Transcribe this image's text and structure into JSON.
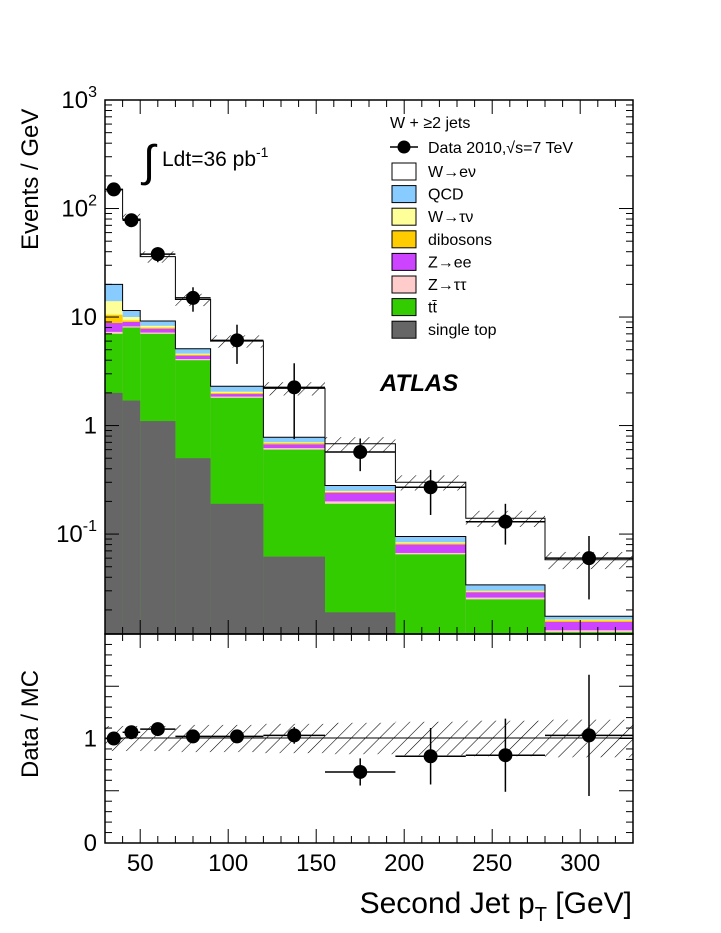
{
  "chart_data": [
    {
      "type": "stacked-histogram",
      "title": "",
      "selection": "W + ≥2 jets",
      "luminosity_label": "Ldt=36 pb",
      "luminosity_sup": "-1",
      "experiment": "ATLAS",
      "xlabel": "Second Jet p",
      "xlabel_sub": "T",
      "xlabel_unit": " [GeV]",
      "ylabel": "Events / GeV",
      "yscale": "log",
      "ylim": [
        0.012,
        1000
      ],
      "xlim": [
        30,
        330
      ],
      "bins": [
        30,
        40,
        50,
        70,
        90,
        120,
        155,
        195,
        235,
        280,
        330
      ],
      "ytick_labels": [
        {
          "value": 1000,
          "base": "10",
          "exp": "3"
        },
        {
          "value": 100,
          "base": "10",
          "exp": "2"
        },
        {
          "value": 10,
          "base": "10",
          "exp": ""
        },
        {
          "value": 1,
          "base": "1",
          "exp": ""
        },
        {
          "value": 0.1,
          "base": "10",
          "exp": "-1"
        }
      ],
      "xtick_labels": [
        "50",
        "100",
        "150",
        "200",
        "250",
        "300"
      ],
      "xtick_values": [
        50,
        100,
        150,
        200,
        250,
        300
      ],
      "series": [
        {
          "name": "single top",
          "color": "#666666",
          "totals": [
            2.0,
            1.7,
            1.1,
            0.5,
            0.19,
            0.062,
            0.019,
            0.0115,
            0.0115,
            0.0115
          ]
        },
        {
          "name": "tt̄",
          "color": "#33cc00",
          "totals": [
            7.0,
            8.0,
            7.0,
            4.0,
            1.8,
            0.6,
            0.19,
            0.065,
            0.025,
            0.0125
          ]
        },
        {
          "name": "Z→ττ",
          "color": "#ffcccc",
          "totals": [
            7.3,
            8.2,
            7.2,
            4.1,
            1.85,
            0.62,
            0.2,
            0.067,
            0.026,
            0.013
          ]
        },
        {
          "name": "Z→ee",
          "color": "#cc44ff",
          "totals": [
            8.8,
            9.0,
            7.8,
            4.4,
            1.95,
            0.67,
            0.24,
            0.08,
            0.029,
            0.0155
          ]
        },
        {
          "name": "dibosons",
          "color": "#ffcc00",
          "totals": [
            10.5,
            9.3,
            8.0,
            4.5,
            2.0,
            0.69,
            0.245,
            0.082,
            0.0295,
            0.016
          ]
        },
        {
          "name": "W→τν",
          "color": "#ffff99",
          "totals": [
            14.0,
            10.0,
            8.3,
            4.6,
            2.05,
            0.7,
            0.25,
            0.084,
            0.03,
            0.0163
          ]
        },
        {
          "name": "QCD",
          "color": "#88ccff",
          "totals": [
            20.0,
            11.5,
            9.2,
            5.1,
            2.3,
            0.78,
            0.28,
            0.095,
            0.034,
            0.0175
          ]
        },
        {
          "name": "W→eν",
          "color": "#ffffff",
          "totals": [
            150,
            80,
            36,
            14.5,
            6.0,
            2.2,
            0.68,
            0.3,
            0.14,
            0.058
          ]
        }
      ],
      "data": {
        "name": "Data 2010,",
        "name_sqrt": "√s=7 TeV",
        "x": [
          35,
          45,
          60,
          80,
          105,
          137.5,
          175,
          215,
          257.5,
          305
        ],
        "y": [
          150,
          78,
          38,
          15,
          6.1,
          2.25,
          0.57,
          0.27,
          0.13,
          0.06
        ],
        "yerr_low": [
          12,
          9,
          6,
          3.8,
          2.4,
          1.5,
          0.19,
          0.12,
          0.05,
          0.035
        ],
        "yerr_high": [
          12,
          9,
          6,
          3.8,
          2.4,
          1.5,
          0.19,
          0.12,
          0.06,
          0.036
        ]
      },
      "legend_order": [
        "Data 2010,",
        "W→eν",
        "QCD",
        "W→τν",
        "dibosons",
        "Z→ee",
        "Z→ττ",
        "tt̄",
        "single top"
      ]
    },
    {
      "type": "ratio",
      "ylabel": "Data / MC",
      "ylim": [
        0,
        2
      ],
      "ytick_labels": [
        "0",
        "1"
      ],
      "ytick_values": [
        0,
        1
      ],
      "x": [
        35,
        45,
        60,
        80,
        105,
        137.5,
        175,
        215,
        257.5,
        305
      ],
      "y": [
        1.0,
        1.06,
        1.09,
        1.02,
        1.02,
        1.03,
        0.68,
        0.83,
        0.84,
        1.03
      ],
      "yerr": [
        0.05,
        0.06,
        0.06,
        0.06,
        0.06,
        0.08,
        0.13,
        0.27,
        0.35,
        0.58
      ],
      "band_halfwidth": [
        0.12,
        0.12,
        0.12,
        0.13,
        0.13,
        0.14,
        0.15,
        0.16,
        0.17,
        0.18
      ]
    }
  ]
}
